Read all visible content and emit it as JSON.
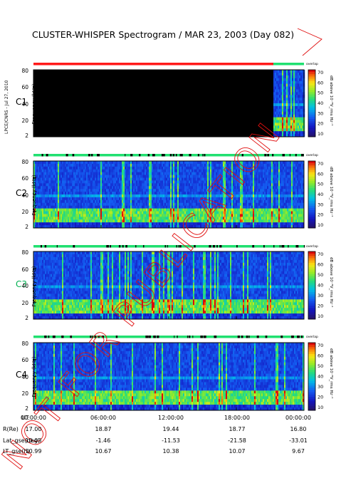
{
  "title": "CLUSTER-WHISPER Spectrogram / MAR 23, 2003 (Day 082)",
  "side_credit": "LPCE/CNRS - Jul 27, 2010",
  "watermark": "NOT FOR PUBLICATION",
  "colorbar": {
    "ticks": [
      "70",
      "60",
      "50",
      "40",
      "30",
      "20",
      "10"
    ],
    "unit_label": "dB above 10⁻⁸V_rms Hz⁻¹",
    "top_label": "overlap"
  },
  "chart_data": [
    {
      "type": "heatmap",
      "panel": "C1",
      "ylabel": "Frequency (kHz)",
      "yticks": [
        "80",
        "60",
        "40",
        "20",
        "2"
      ],
      "ylim": [
        2,
        80
      ],
      "data_start_ut": "22:00:00",
      "note_text": ""
    },
    {
      "type": "heatmap",
      "panel": "C2",
      "ylabel": "Frequency (kHz)",
      "yticks": [
        "80",
        "60",
        "40",
        "20",
        "2"
      ],
      "ylim": [
        2,
        80
      ]
    },
    {
      "type": "heatmap",
      "panel": "C3",
      "ylabel": "Frequency (kHz)",
      "yticks": [
        "80",
        "60",
        "40",
        "20",
        "2"
      ],
      "ylim": [
        2,
        80
      ]
    },
    {
      "type": "heatmap",
      "panel": "C4",
      "ylabel": "Frequency (kHz)",
      "yticks": [
        "80",
        "60",
        "40",
        "20",
        "2"
      ],
      "ylim": [
        2,
        80
      ]
    }
  ],
  "orbit_table": {
    "rows": [
      {
        "label": "UT",
        "values": [
          "00:00:00",
          "06:00:00",
          "12:00:00",
          "18:00:00",
          "00:00:00"
        ]
      },
      {
        "label": "R(Re)",
        "values": [
          "17.00",
          "18.87",
          "19.44",
          "18.77",
          "16.80"
        ]
      },
      {
        "label": "Lat_gse(deg)",
        "values": [
          "10.03",
          "-1.46",
          "-11.53",
          "-21.58",
          "-33.01"
        ]
      },
      {
        "label": "LT_gse(h)",
        "values": [
          "10.99",
          "10.67",
          "10.38",
          "10.07",
          "9.67"
        ]
      }
    ]
  },
  "panel_colors": {
    "C1": "#000000",
    "C2": "#000000",
    "C3": "#00b050",
    "C4": "#000000"
  }
}
